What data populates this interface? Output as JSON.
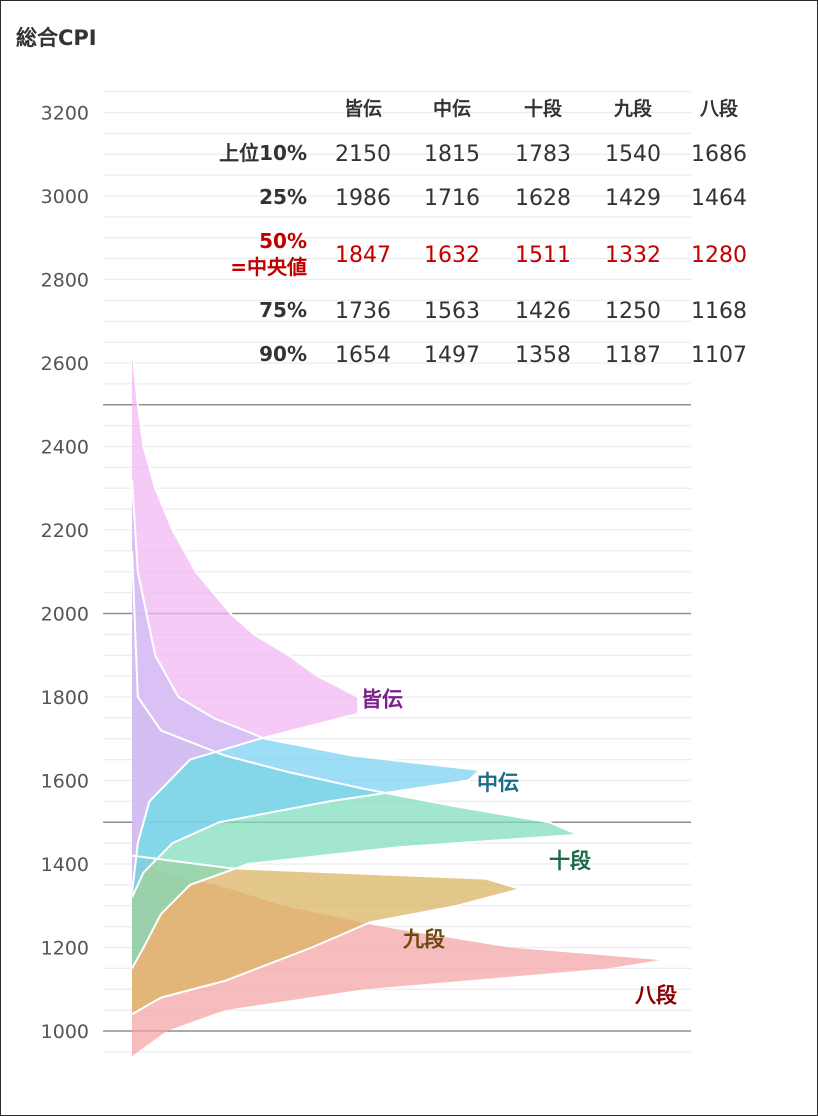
{
  "chart_data": {
    "type": "area",
    "title": "総合CPI",
    "ylabel": "",
    "xlabel": "",
    "ylim": [
      930,
      3330
    ],
    "yticks": [
      1000,
      1200,
      1400,
      1600,
      1800,
      2000,
      2200,
      2400,
      2600,
      2800,
      3000,
      3200
    ],
    "grid": true,
    "reference_lines": [
      1000,
      1500,
      2000,
      2500
    ],
    "table": {
      "columns": [
        "皆伝",
        "中伝",
        "十段",
        "九段",
        "八段"
      ],
      "rows": [
        {
          "label": "上位10%",
          "values": [
            2150,
            1815,
            1783,
            1540,
            1686
          ],
          "highlight": false
        },
        {
          "label": "25%",
          "values": [
            1986,
            1716,
            1628,
            1429,
            1464
          ],
          "highlight": false
        },
        {
          "label": "50%",
          "sublabel": "=中央値",
          "values": [
            1847,
            1632,
            1511,
            1332,
            1280
          ],
          "highlight": true
        },
        {
          "label": "75%",
          "values": [
            1736,
            1563,
            1426,
            1250,
            1168
          ],
          "highlight": false
        },
        {
          "label": "90%",
          "values": [
            1654,
            1497,
            1358,
            1187,
            1107
          ],
          "highlight": false
        }
      ]
    },
    "series": [
      {
        "name": "八段",
        "color": "#f4a3a5",
        "label_color": "#8b0000",
        "density": [
          [
            940,
            0
          ],
          [
            960,
            0.02
          ],
          [
            1000,
            0.06
          ],
          [
            1050,
            0.16
          ],
          [
            1100,
            0.4
          ],
          [
            1150,
            0.82
          ],
          [
            1170,
            0.91
          ],
          [
            1200,
            0.65
          ],
          [
            1250,
            0.43
          ],
          [
            1300,
            0.26
          ],
          [
            1340,
            0.17
          ],
          [
            1380,
            0.05
          ],
          [
            1420,
            0.01
          ],
          [
            1500,
            0
          ]
        ]
      },
      {
        "name": "九段",
        "color": "#d9b25e",
        "label_color": "#6b4a10",
        "density": [
          [
            1040,
            0
          ],
          [
            1080,
            0.05
          ],
          [
            1120,
            0.16
          ],
          [
            1200,
            0.31
          ],
          [
            1260,
            0.41
          ],
          [
            1300,
            0.56
          ],
          [
            1340,
            0.67
          ],
          [
            1365,
            0.61
          ],
          [
            1390,
            0.17
          ],
          [
            1420,
            0
          ]
        ]
      },
      {
        "name": "十段",
        "color": "#7fdcbc",
        "label_color": "#1a6b45",
        "density": [
          [
            1150,
            0
          ],
          [
            1200,
            0.02
          ],
          [
            1280,
            0.05
          ],
          [
            1350,
            0.1
          ],
          [
            1400,
            0.2
          ],
          [
            1440,
            0.46
          ],
          [
            1470,
            0.77
          ],
          [
            1500,
            0.72
          ],
          [
            1540,
            0.55
          ],
          [
            1580,
            0.4
          ],
          [
            1620,
            0.27
          ],
          [
            1660,
            0.16
          ],
          [
            1720,
            0.05
          ],
          [
            1800,
            0.01
          ],
          [
            2150,
            0
          ]
        ]
      },
      {
        "name": "中伝",
        "color": "#79d0f2",
        "label_color": "#1a6b8c",
        "density": [
          [
            1320,
            0
          ],
          [
            1380,
            0.02
          ],
          [
            1450,
            0.07
          ],
          [
            1500,
            0.15
          ],
          [
            1550,
            0.34
          ],
          [
            1600,
            0.58
          ],
          [
            1625,
            0.6
          ],
          [
            1660,
            0.38
          ],
          [
            1700,
            0.23
          ],
          [
            1750,
            0.14
          ],
          [
            1800,
            0.08
          ],
          [
            1900,
            0.04
          ],
          [
            2100,
            0.01
          ],
          [
            2320,
            0
          ]
        ]
      },
      {
        "name": "皆伝",
        "color": "#f1b6f4",
        "label_color": "#7b1f8c",
        "density": [
          [
            1330,
            0
          ],
          [
            1450,
            0.01
          ],
          [
            1550,
            0.03
          ],
          [
            1650,
            0.1
          ],
          [
            1700,
            0.22
          ],
          [
            1760,
            0.39
          ],
          [
            1800,
            0.39
          ],
          [
            1850,
            0.32
          ],
          [
            1900,
            0.27
          ],
          [
            1950,
            0.21
          ],
          [
            2000,
            0.17
          ],
          [
            2100,
            0.11
          ],
          [
            2200,
            0.07
          ],
          [
            2300,
            0.04
          ],
          [
            2400,
            0.02
          ],
          [
            2500,
            0.01
          ],
          [
            2640,
            0
          ]
        ]
      }
    ]
  }
}
